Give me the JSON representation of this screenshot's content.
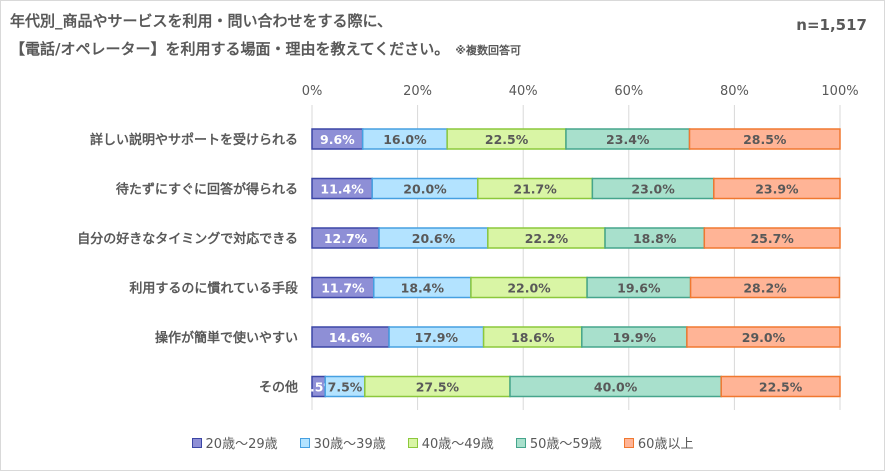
{
  "title_line1": "年代別_商品やサービスを利用・問い合わせをする際に、",
  "title_line2": "【電話/オペレーター】を利用する場面・理由を教えてください。",
  "note": "※複数回答可",
  "sample": "n=1,517",
  "colors": {
    "s1_fill": "#8e8fd6",
    "s1_border": "#3c46a5",
    "s2_fill": "#b3e3ff",
    "s2_border": "#46a0e1",
    "s3_fill": "#d9f5a5",
    "s3_border": "#8cc83c",
    "s4_fill": "#a8e0cc",
    "s4_border": "#46a58c",
    "s5_fill": "#ffb496",
    "s5_border": "#f07830",
    "grid": "#d9d9d9",
    "text": "#595959",
    "label_light": "#ffffff"
  },
  "chart_data": {
    "type": "bar",
    "orientation": "horizontal",
    "stacked": true,
    "percent": true,
    "categories": [
      "詳しい説明やサポートを受けられる",
      "待たずにすぐに回答が得られる",
      "自分の好きなタイミングで対応できる",
      "利用するのに慣れている手段",
      "操作が簡単で使いやすい",
      "その他"
    ],
    "series": [
      {
        "name": "20歳〜29歳",
        "values": [
          9.6,
          11.4,
          12.7,
          11.7,
          14.6,
          2.5
        ]
      },
      {
        "name": "30歳〜39歳",
        "values": [
          16.0,
          20.0,
          20.6,
          18.4,
          17.9,
          7.5
        ]
      },
      {
        "name": "40歳〜49歳",
        "values": [
          22.5,
          21.7,
          22.2,
          22.0,
          18.6,
          27.5
        ]
      },
      {
        "name": "50歳〜59歳",
        "values": [
          23.4,
          23.0,
          18.8,
          19.6,
          19.9,
          40.0
        ]
      },
      {
        "name": "60歳以上",
        "values": [
          28.5,
          23.9,
          25.7,
          28.2,
          29.0,
          22.5
        ]
      }
    ],
    "xlim": [
      0,
      100
    ],
    "xticks": [
      "0%",
      "20%",
      "40%",
      "60%",
      "80%",
      "100%"
    ],
    "legend_position": "bottom",
    "grid": true
  }
}
